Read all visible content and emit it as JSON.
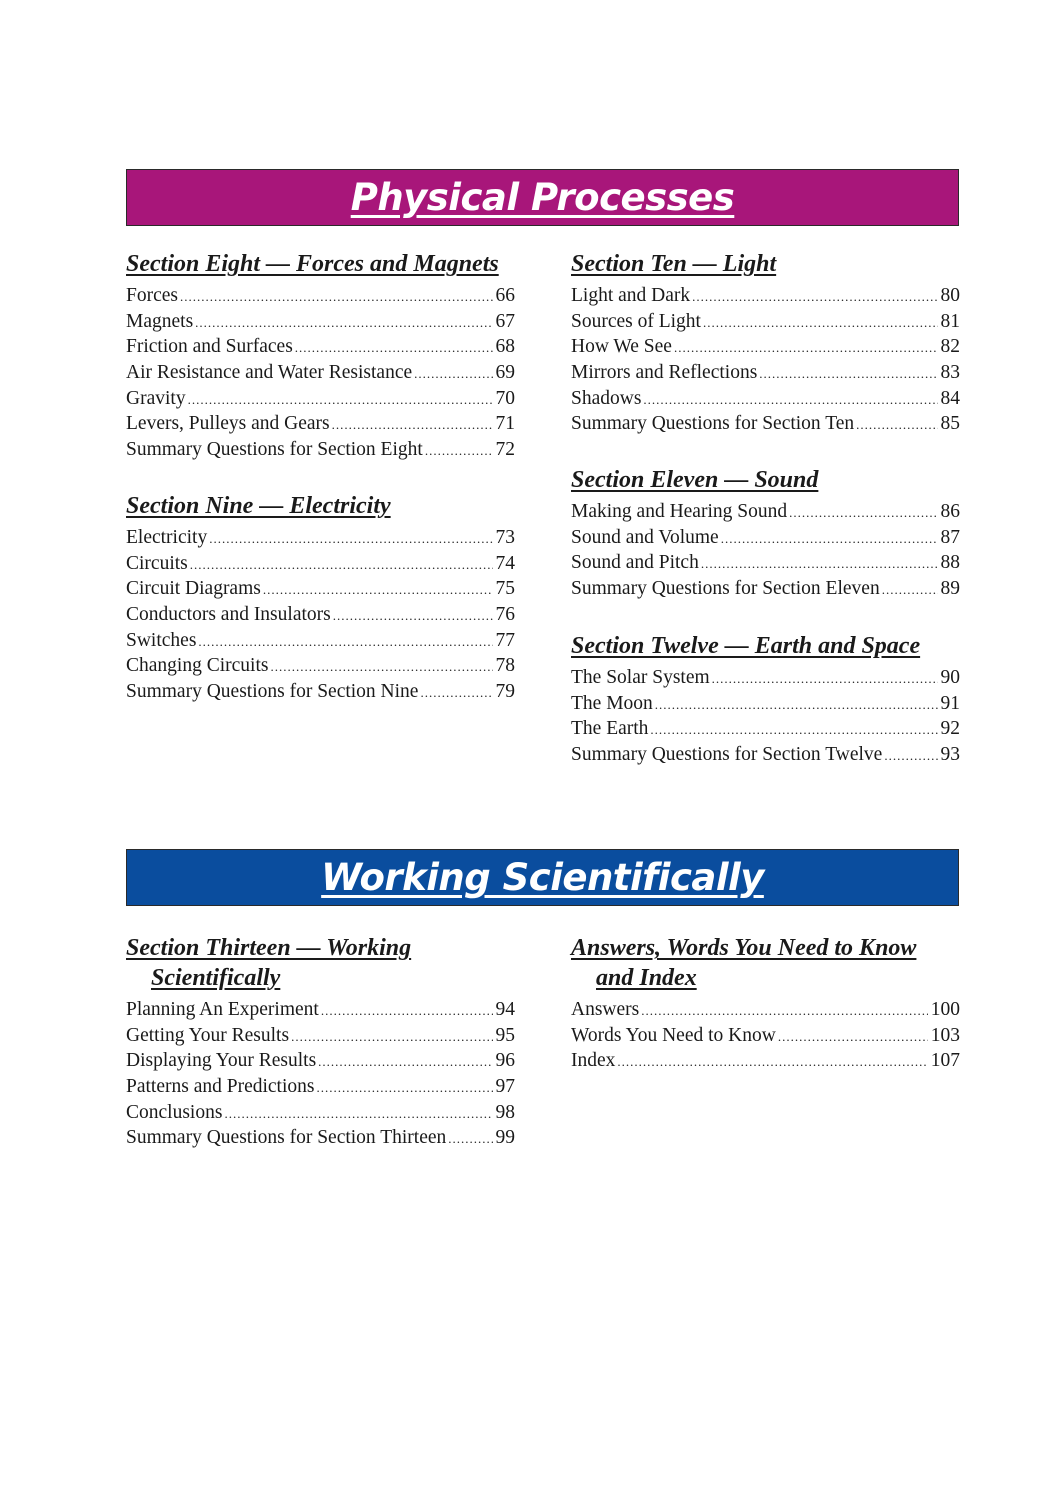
{
  "colors": {
    "physical_banner": "#a8167a",
    "working_banner": "#0a4d9e"
  },
  "banners": [
    {
      "title": "Physical Processes"
    },
    {
      "title": "Working Scientifically"
    }
  ],
  "sections": [
    {
      "heading": [
        "Section Eight — Forces and Magnets"
      ],
      "entries": [
        {
          "label": "Forces",
          "page": "66"
        },
        {
          "label": "Magnets",
          "page": "67"
        },
        {
          "label": "Friction and Surfaces",
          "page": "68"
        },
        {
          "label": "Air Resistance and Water Resistance",
          "page": "69"
        },
        {
          "label": "Gravity",
          "page": "70"
        },
        {
          "label": "Levers, Pulleys and Gears",
          "page": "71"
        },
        {
          "label": "Summary Questions for Section Eight",
          "page": "72"
        }
      ]
    },
    {
      "heading": [
        "Section Nine — Electricity"
      ],
      "entries": [
        {
          "label": "Electricity",
          "page": "73"
        },
        {
          "label": "Circuits",
          "page": "74"
        },
        {
          "label": "Circuit Diagrams",
          "page": "75"
        },
        {
          "label": "Conductors and Insulators",
          "page": "76"
        },
        {
          "label": "Switches",
          "page": "77"
        },
        {
          "label": "Changing Circuits",
          "page": "78"
        },
        {
          "label": "Summary Questions for Section Nine",
          "page": "79"
        }
      ]
    },
    {
      "heading": [
        "Section Ten — Light"
      ],
      "entries": [
        {
          "label": "Light and Dark",
          "page": "80"
        },
        {
          "label": "Sources of Light",
          "page": "81"
        },
        {
          "label": "How We See",
          "page": "82"
        },
        {
          "label": "Mirrors and Reflections",
          "page": "83"
        },
        {
          "label": "Shadows",
          "page": "84"
        },
        {
          "label": "Summary Questions for Section Ten",
          "page": "85"
        }
      ]
    },
    {
      "heading": [
        "Section Eleven — Sound"
      ],
      "entries": [
        {
          "label": "Making and Hearing Sound",
          "page": "86"
        },
        {
          "label": "Sound and Volume",
          "page": "87"
        },
        {
          "label": "Sound and Pitch",
          "page": "88"
        },
        {
          "label": "Summary Questions for Section Eleven",
          "page": "89"
        }
      ]
    },
    {
      "heading": [
        "Section Twelve — Earth and Space"
      ],
      "entries": [
        {
          "label": "The Solar System",
          "page": "90"
        },
        {
          "label": "The Moon",
          "page": "91"
        },
        {
          "label": "The Earth",
          "page": "92"
        },
        {
          "label": "Summary Questions for Section Twelve",
          "page": "93"
        }
      ]
    },
    {
      "heading": [
        "Section Thirteen — Working",
        "Scientifically"
      ],
      "entries": [
        {
          "label": "Planning An Experiment",
          "page": "94"
        },
        {
          "label": "Getting Your Results",
          "page": "95"
        },
        {
          "label": "Displaying Your Results",
          "page": "96"
        },
        {
          "label": "Patterns and Predictions",
          "page": "97"
        },
        {
          "label": "Conclusions",
          "page": "98"
        },
        {
          "label": "Summary Questions for Section Thirteen",
          "page": "99"
        }
      ]
    },
    {
      "heading": [
        "Answers, Words You Need to Know",
        "and Index"
      ],
      "entries": [
        {
          "label": "Answers",
          "page": "100"
        },
        {
          "label": "Words You Need to Know",
          "page": "103"
        },
        {
          "label": "Index",
          "page": "107"
        }
      ]
    }
  ]
}
